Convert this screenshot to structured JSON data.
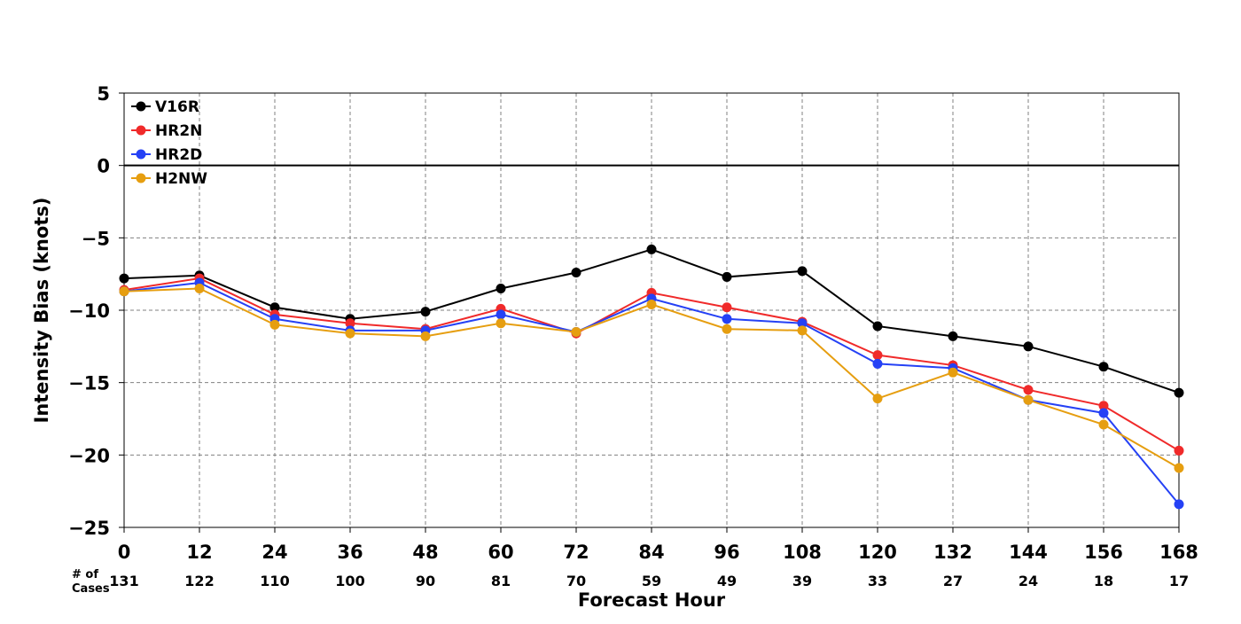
{
  "chart_data": {
    "type": "line",
    "xlabel": "Forecast Hour",
    "ylabel": "Intensity Bias (knots)",
    "x": [
      0,
      12,
      24,
      36,
      48,
      60,
      72,
      84,
      96,
      108,
      120,
      132,
      144,
      156,
      168
    ],
    "xlim": [
      0,
      168
    ],
    "ylim": [
      -25,
      5
    ],
    "yticks": [
      5,
      0,
      -5,
      -10,
      -15,
      -20,
      -25
    ],
    "ytick_labels": [
      "5",
      "0",
      "−5",
      "−10",
      "−15",
      "−20",
      "−25"
    ],
    "grid": true,
    "legend_position": "top-left",
    "cases_label": "# of\nCases",
    "cases": [
      131,
      122,
      110,
      100,
      90,
      81,
      70,
      59,
      49,
      39,
      33,
      27,
      24,
      18,
      17
    ],
    "series": [
      {
        "name": "V16R",
        "color": "#000000",
        "values": [
          -7.8,
          -7.6,
          -9.8,
          -10.6,
          -10.1,
          -8.5,
          -7.4,
          -5.8,
          -7.7,
          -7.3,
          -11.1,
          -11.8,
          -12.5,
          -13.9,
          -15.7
        ]
      },
      {
        "name": "HR2N",
        "color": "#f02a2a",
        "values": [
          -8.6,
          -7.8,
          -10.3,
          -10.9,
          -11.3,
          -9.9,
          -11.6,
          -8.8,
          -9.8,
          -10.8,
          -13.1,
          -13.8,
          -15.5,
          -16.6,
          -19.7
        ]
      },
      {
        "name": "HR2D",
        "color": "#2541f5",
        "values": [
          -8.7,
          -8.1,
          -10.6,
          -11.4,
          -11.4,
          -10.3,
          -11.5,
          -9.2,
          -10.6,
          -10.9,
          -13.7,
          -14.0,
          -16.2,
          -17.1,
          -23.4
        ]
      },
      {
        "name": "H2NW",
        "color": "#e69e10",
        "values": [
          -8.7,
          -8.5,
          -11.0,
          -11.6,
          -11.8,
          -10.9,
          -11.5,
          -9.6,
          -11.3,
          -11.4,
          -16.1,
          -14.3,
          -16.2,
          -17.9,
          -20.9
        ]
      }
    ]
  }
}
